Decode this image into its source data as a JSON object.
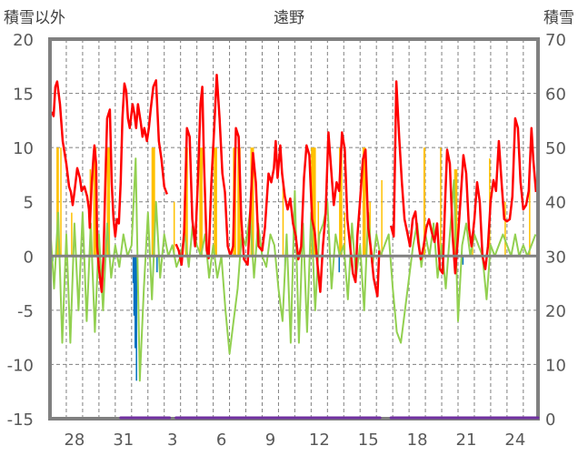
{
  "chart_data": {
    "type": "line",
    "title": "遠野",
    "left_axis_label": "積雪以外",
    "right_axis_label": "積雪",
    "ylim_left": [
      -15,
      20
    ],
    "ylim_right": [
      0,
      70
    ],
    "yticks_left": [
      "20",
      "15",
      "10",
      "5",
      "0",
      "-5",
      "-10",
      "-15"
    ],
    "yticks_right": [
      "70",
      "60",
      "50",
      "40",
      "30",
      "20",
      "10",
      "0"
    ],
    "x_unit": "days since Dec 27 00:00",
    "xlim": [
      0,
      29.9
    ],
    "xticks": [
      {
        "day": 1.5,
        "label": "28"
      },
      {
        "day": 4.5,
        "label": "31"
      },
      {
        "day": 7.5,
        "label": "3"
      },
      {
        "day": 10.5,
        "label": "6"
      },
      {
        "day": 13.5,
        "label": "9"
      },
      {
        "day": 16.5,
        "label": "12"
      },
      {
        "day": 19.5,
        "label": "15"
      },
      {
        "day": 22.5,
        "label": "18"
      },
      {
        "day": 25.5,
        "label": "21"
      },
      {
        "day": 28.5,
        "label": "24"
      }
    ],
    "grid": true,
    "colors": {
      "red": "#ff0000",
      "green": "#92d050",
      "orange": "#ffc000",
      "blue": "#0070c0",
      "purple": "#7030a0",
      "axis": "#808080"
    },
    "red_series": [
      [
        [
          0.11,
          13.3
        ],
        [
          0.22,
          12.9
        ],
        [
          0.33,
          15.6
        ],
        [
          0.44,
          16.1
        ],
        [
          0.61,
          14
        ],
        [
          0.78,
          10.6
        ],
        [
          1.0,
          8.5
        ],
        [
          1.17,
          6.4
        ],
        [
          1.28,
          5.9
        ],
        [
          1.39,
          4.7
        ],
        [
          1.5,
          5.9
        ],
        [
          1.67,
          8.1
        ],
        [
          1.83,
          7.2
        ],
        [
          1.94,
          6
        ],
        [
          2.11,
          6.4
        ],
        [
          2.28,
          5.5
        ],
        [
          2.39,
          4.3
        ],
        [
          2.44,
          2.6
        ],
        [
          2.56,
          6.8
        ],
        [
          2.67,
          9.3
        ],
        [
          2.72,
          10.2
        ],
        [
          2.83,
          8.5
        ],
        [
          2.89,
          0.9
        ],
        [
          3.0,
          -1.2
        ],
        [
          3.17,
          -3.3
        ],
        [
          3.28,
          0
        ],
        [
          3.39,
          6.8
        ],
        [
          3.5,
          12.7
        ],
        [
          3.67,
          13.5
        ],
        [
          3.78,
          6.8
        ],
        [
          3.89,
          3.4
        ],
        [
          4.0,
          1.8
        ],
        [
          4.11,
          3.4
        ],
        [
          4.22,
          3
        ],
        [
          4.33,
          6.8
        ],
        [
          4.44,
          12.7
        ],
        [
          4.56,
          15.9
        ],
        [
          4.67,
          15.2
        ],
        [
          4.78,
          12.7
        ],
        [
          4.89,
          11.8
        ],
        [
          5.06,
          14
        ],
        [
          5.17,
          13.1
        ],
        [
          5.28,
          11.8
        ],
        [
          5.39,
          14
        ],
        [
          5.56,
          12.3
        ],
        [
          5.67,
          11
        ],
        [
          5.78,
          11.8
        ],
        [
          5.94,
          10.6
        ],
        [
          6.06,
          11.8
        ],
        [
          6.17,
          13.5
        ],
        [
          6.33,
          15.6
        ],
        [
          6.5,
          16.2
        ],
        [
          6.67,
          10.6
        ],
        [
          6.83,
          8.9
        ],
        [
          7.0,
          6.4
        ],
        [
          7.17,
          5.7
        ]
      ],
      [
        [
          7.72,
          1.1
        ],
        [
          7.89,
          0.5
        ],
        [
          8.06,
          -0.8
        ],
        [
          8.22,
          2.2
        ],
        [
          8.39,
          11.8
        ],
        [
          8.56,
          11
        ],
        [
          8.72,
          3.4
        ],
        [
          8.89,
          0.9
        ],
        [
          9.06,
          6.8
        ],
        [
          9.22,
          14
        ],
        [
          9.33,
          15.6
        ],
        [
          9.44,
          8.5
        ],
        [
          9.61,
          0.5
        ],
        [
          9.72,
          -0.2
        ],
        [
          9.89,
          6.8
        ],
        [
          10.06,
          11.8
        ],
        [
          10.22,
          16.7
        ],
        [
          10.39,
          12.7
        ],
        [
          10.56,
          7.6
        ],
        [
          10.72,
          5.9
        ],
        [
          10.89,
          0.9
        ],
        [
          11.06,
          0
        ],
        [
          11.22,
          0.9
        ],
        [
          11.39,
          11.8
        ],
        [
          11.56,
          11
        ],
        [
          11.72,
          3.4
        ],
        [
          11.89,
          -0.3
        ],
        [
          12.11,
          -0.8
        ],
        [
          12.28,
          4.3
        ],
        [
          12.44,
          9.5
        ],
        [
          12.61,
          6.8
        ],
        [
          12.78,
          0.9
        ],
        [
          13.0,
          0.5
        ],
        [
          13.17,
          2.6
        ],
        [
          13.39,
          7.6
        ],
        [
          13.56,
          6.8
        ],
        [
          13.72,
          8.1
        ],
        [
          13.83,
          10.6
        ],
        [
          13.94,
          7.2
        ],
        [
          14.11,
          10.2
        ],
        [
          14.22,
          7.6
        ],
        [
          14.39,
          5.5
        ],
        [
          14.56,
          4.3
        ],
        [
          14.72,
          5.3
        ],
        [
          14.89,
          3
        ],
        [
          15.06,
          1.8
        ],
        [
          15.22,
          -0.3
        ],
        [
          15.39,
          0.9
        ],
        [
          15.56,
          7.2
        ],
        [
          15.72,
          10.2
        ],
        [
          15.89,
          9.3
        ],
        [
          16.06,
          3.4
        ],
        [
          16.22,
          2.2
        ],
        [
          16.39,
          -0.8
        ],
        [
          16.56,
          -3.3
        ],
        [
          16.72,
          0.9
        ],
        [
          16.89,
          3.9
        ],
        [
          17.06,
          11.4
        ],
        [
          17.22,
          8.1
        ],
        [
          17.39,
          4.7
        ],
        [
          17.56,
          6.8
        ],
        [
          17.72,
          6
        ],
        [
          17.89,
          11.4
        ],
        [
          18.06,
          9.8
        ],
        [
          18.22,
          3.4
        ],
        [
          18.39,
          0.9
        ],
        [
          18.56,
          -1.6
        ],
        [
          18.72,
          -2.4
        ],
        [
          18.83,
          1.8
        ],
        [
          19.0,
          5.1
        ],
        [
          19.17,
          8.9
        ],
        [
          19.33,
          9.8
        ],
        [
          19.5,
          2.6
        ],
        [
          19.67,
          0.5
        ],
        [
          19.83,
          -2
        ],
        [
          20.06,
          -3.7
        ],
        [
          20.17,
          0.5
        ]
      ],
      [
        [
          20.89,
          2.8
        ],
        [
          21.06,
          1.8
        ],
        [
          21.22,
          16.1
        ],
        [
          21.39,
          11
        ],
        [
          21.56,
          6.8
        ],
        [
          21.72,
          3.4
        ],
        [
          21.89,
          2.2
        ],
        [
          22.06,
          0.9
        ],
        [
          22.22,
          3.4
        ],
        [
          22.39,
          4.1
        ],
        [
          22.56,
          1.3
        ],
        [
          22.72,
          -0.3
        ],
        [
          22.89,
          0.9
        ],
        [
          23.06,
          2.6
        ],
        [
          23.22,
          3.4
        ],
        [
          23.39,
          2.2
        ],
        [
          23.56,
          1.3
        ],
        [
          23.72,
          3
        ],
        [
          23.89,
          -1.2
        ],
        [
          24.06,
          -1.6
        ],
        [
          24.22,
          5.5
        ],
        [
          24.33,
          9.8
        ],
        [
          24.5,
          8.5
        ],
        [
          24.67,
          1.8
        ],
        [
          24.83,
          -1.6
        ],
        [
          25.0,
          1.8
        ],
        [
          25.17,
          5.5
        ],
        [
          25.33,
          9.3
        ],
        [
          25.5,
          7.6
        ],
        [
          25.67,
          2.6
        ],
        [
          25.83,
          0.9
        ],
        [
          26.0,
          3.4
        ],
        [
          26.17,
          6.8
        ],
        [
          26.33,
          5
        ],
        [
          26.5,
          0
        ],
        [
          26.67,
          -1.2
        ],
        [
          26.83,
          0.9
        ],
        [
          27.0,
          5.1
        ],
        [
          27.17,
          7
        ],
        [
          27.33,
          6
        ],
        [
          27.5,
          10.6
        ],
        [
          27.67,
          6.8
        ],
        [
          27.83,
          3.4
        ],
        [
          28.0,
          3.2
        ],
        [
          28.17,
          3.4
        ],
        [
          28.33,
          5.5
        ],
        [
          28.5,
          12.7
        ],
        [
          28.67,
          11.8
        ],
        [
          28.83,
          6.8
        ],
        [
          29.0,
          4.3
        ],
        [
          29.17,
          4.7
        ],
        [
          29.33,
          6
        ],
        [
          29.5,
          11.8
        ],
        [
          29.61,
          8.9
        ],
        [
          29.78,
          5.9
        ]
      ]
    ],
    "green_series": {
      "start_day": 0,
      "step_days": 0.25,
      "values": [
        3,
        -3,
        4,
        -8,
        2,
        -8,
        3,
        -5,
        4,
        -6,
        3,
        -7,
        2,
        -5,
        3,
        -2,
        1,
        -1,
        2,
        0,
        1,
        9,
        -11.5,
        -3,
        4,
        -4,
        5,
        -2,
        2,
        0,
        1,
        -1,
        0,
        2,
        -1,
        3,
        1,
        0,
        2,
        -2,
        1,
        -2,
        0,
        -5,
        -9,
        -6,
        -3,
        2,
        1,
        4,
        -2,
        3,
        0,
        -1,
        2,
        1,
        -3,
        -6,
        2,
        -8,
        6,
        -8,
        3,
        -7,
        4,
        -5,
        2,
        3,
        5,
        -3,
        2,
        0,
        1,
        -4,
        3,
        -2,
        1,
        -5,
        4,
        -1,
        2,
        0,
        1,
        2,
        -3,
        -7,
        -8,
        -5,
        -2,
        1,
        3,
        -1,
        2,
        0,
        3,
        -2,
        1,
        -3,
        2,
        7,
        -6,
        1,
        3,
        0,
        2,
        1,
        0,
        -4,
        1,
        0,
        1,
        2,
        1,
        0,
        2,
        0,
        1,
        0,
        1,
        2
      ]
    },
    "orange_bars": [
      [
        0.47,
        10,
        0.15
      ],
      [
        0.67,
        10,
        0.05
      ],
      [
        1.33,
        4,
        0.05
      ],
      [
        2.47,
        8,
        0.08
      ],
      [
        2.75,
        10,
        0.2
      ],
      [
        3.58,
        10,
        0.2
      ],
      [
        6.33,
        10,
        0.22
      ],
      [
        7.61,
        5,
        0.05
      ],
      [
        8.36,
        10,
        0.18
      ],
      [
        9.25,
        10,
        0.2
      ],
      [
        10.14,
        10,
        0.2
      ],
      [
        11.31,
        10,
        0.2
      ],
      [
        11.58,
        10,
        0.2
      ],
      [
        12.39,
        10,
        0.22
      ],
      [
        14.28,
        7,
        0.05
      ],
      [
        16.14,
        10,
        0.3
      ],
      [
        16.44,
        5,
        0.05
      ],
      [
        17.81,
        10,
        0.2
      ],
      [
        18.06,
        4,
        0.05
      ],
      [
        19.25,
        10,
        0.2
      ],
      [
        19.61,
        5,
        0.05
      ],
      [
        20.33,
        7,
        0.05
      ],
      [
        22.94,
        10,
        0.12
      ],
      [
        23.94,
        10,
        0.05
      ],
      [
        24.86,
        8,
        0.2
      ],
      [
        25.89,
        2,
        0.05
      ],
      [
        26.94,
        9,
        0.05
      ],
      [
        27.89,
        5,
        0.05
      ],
      [
        29.39,
        8,
        0.08
      ]
    ],
    "blue_bars": [
      [
        0.17,
        -0.5,
        0.05
      ],
      [
        5.1,
        -2.5,
        0.08
      ],
      [
        5.15,
        -5.5,
        0.06
      ],
      [
        5.22,
        -8.5,
        0.08
      ],
      [
        5.3,
        -11.5,
        0.06
      ],
      [
        6.56,
        -1.5,
        0.06
      ],
      [
        14.4,
        -1,
        0.06
      ],
      [
        17.72,
        -1.5,
        0.06
      ],
      [
        25.3,
        -0.8,
        0.05
      ]
    ],
    "purple_segments": [
      [
        4.33,
        7.33,
        0
      ],
      [
        7.72,
        20.22,
        0
      ],
      [
        20.89,
        29.9,
        0
      ]
    ]
  }
}
